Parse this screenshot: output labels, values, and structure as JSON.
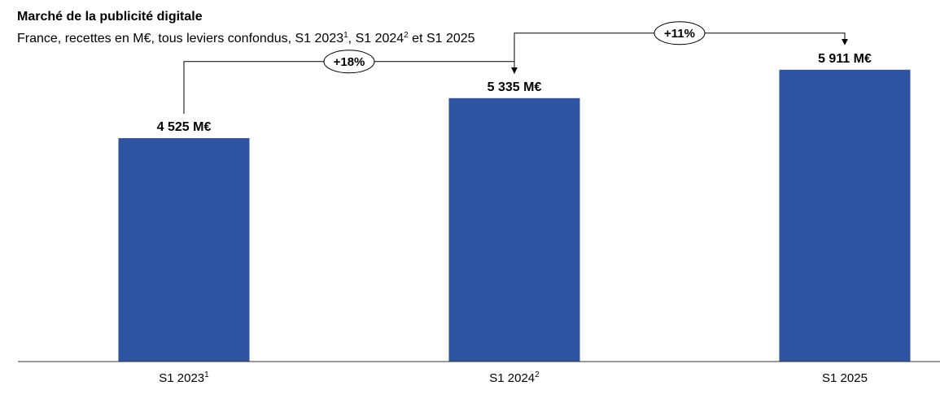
{
  "title": "Marché de la publicité digitale",
  "subtitle": {
    "main": "France, recettes en M€, tous leviers confondus, S1 2023",
    "sup1": "1",
    "mid": ", S1 2024",
    "sup2": "2",
    "end": " et S1 2025"
  },
  "colors": {
    "bar": "#2F54A1",
    "text": "#000000",
    "connector": "#000000"
  },
  "chart_data": {
    "type": "bar",
    "categories": [
      "S1 2023",
      "S1 2024",
      "S1 2025"
    ],
    "category_footnotes": [
      "1",
      "2",
      ""
    ],
    "values": [
      4525,
      5335,
      5911
    ],
    "value_labels": [
      "4 525 M€",
      "5 335 M€",
      "5 911 M€"
    ],
    "ylim": [
      0,
      6500
    ],
    "growth": [
      {
        "from": 0,
        "to": 1,
        "label": "+18%"
      },
      {
        "from": 1,
        "to": 2,
        "label": "+11%"
      }
    ]
  }
}
